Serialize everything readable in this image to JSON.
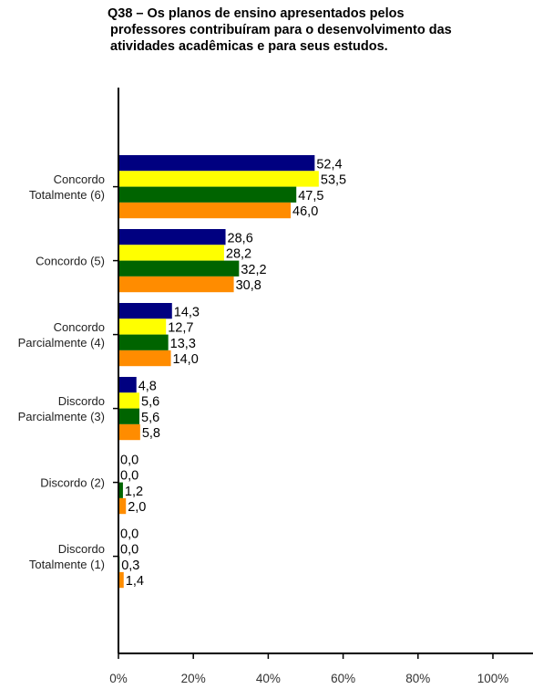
{
  "title_lines": [
    "Q38 – Os planos de ensino apresentados pelos",
    "professores contribuíram para o desenvolvimento das",
    "atividades acadêmicas e para seus estudos."
  ],
  "chart_data": {
    "type": "bar",
    "orientation": "horizontal",
    "title": "Q38 – Os planos de ensino apresentados pelos professores contribuíram para o desenvolvimento das atividades acadêmicas e para seus estudos.",
    "categories": [
      [
        "Concordo",
        "Totalmente (6)"
      ],
      [
        "Concordo (5)"
      ],
      [
        "Concordo",
        "Parcialmente (4)"
      ],
      [
        "Discordo",
        "Parcialmente (3)"
      ],
      [
        "Discordo (2)"
      ],
      [
        "Discordo",
        "Totalmente (1)"
      ]
    ],
    "series": [
      {
        "color": "#000080",
        "values": [
          52.4,
          28.6,
          14.3,
          4.8,
          0.0,
          0.0
        ]
      },
      {
        "color": "#ffff00",
        "values": [
          53.5,
          28.2,
          12.7,
          5.6,
          0.0,
          0.0
        ]
      },
      {
        "color": "#006400",
        "values": [
          47.5,
          32.2,
          13.3,
          5.6,
          1.2,
          0.3
        ]
      },
      {
        "color": "#ff8c00",
        "values": [
          46.0,
          30.8,
          14.0,
          5.8,
          2.0,
          1.4
        ]
      }
    ],
    "value_labels": [
      [
        "52,4",
        "28,6",
        "14,3",
        "4,8",
        "0,0",
        "0,0"
      ],
      [
        "53,5",
        "28,2",
        "12,7",
        "5,6",
        "0,0",
        "0,0"
      ],
      [
        "47,5",
        "32,2",
        "13,3",
        "5,6",
        "1,2",
        "0,3"
      ],
      [
        "46,0",
        "30,8",
        "14,0",
        "5,8",
        "2,0",
        "1,4"
      ]
    ],
    "xlim": [
      0,
      100
    ],
    "xticks": [
      0,
      20,
      40,
      60,
      80,
      100
    ],
    "xtick_labels": [
      "0%",
      "20%",
      "40%",
      "60%",
      "80%",
      "100%"
    ],
    "grid": false,
    "legend": "none"
  }
}
